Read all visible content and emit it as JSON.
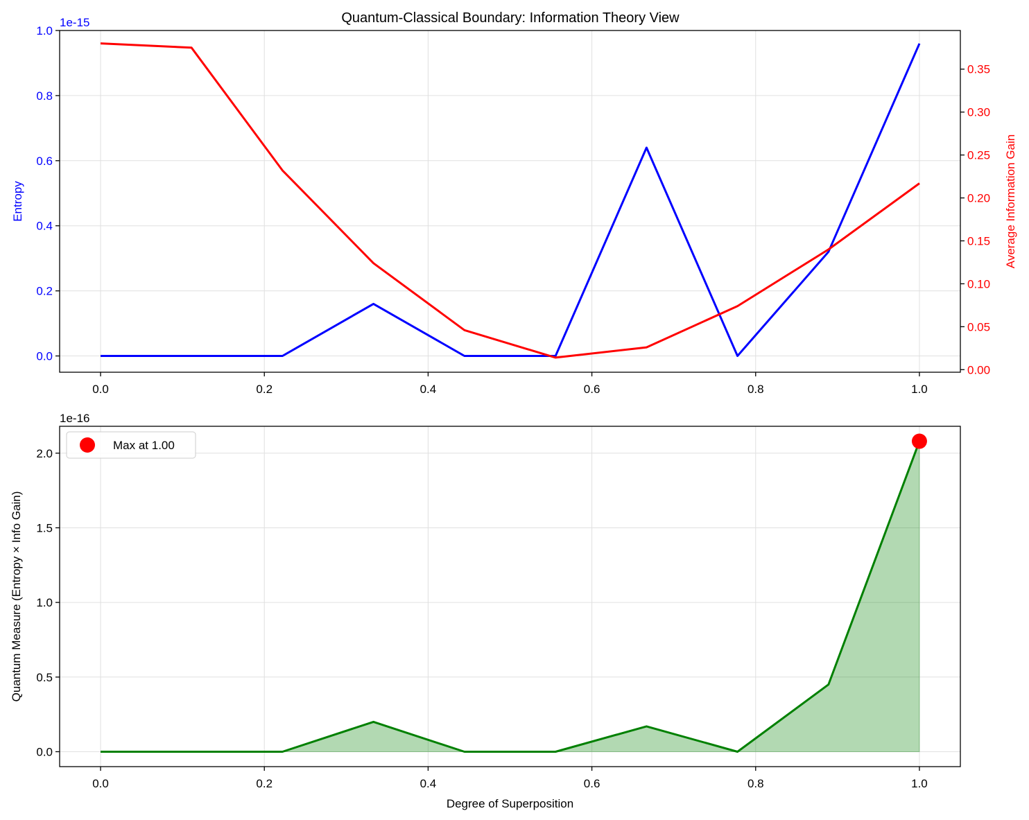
{
  "figure": {
    "title": "Quantum-Classical Boundary: Information Theory View"
  },
  "chart_data": [
    {
      "type": "line",
      "title": "Quantum-Classical Boundary: Information Theory View",
      "xlabel": "",
      "x": [
        0.0,
        0.1111,
        0.2222,
        0.3333,
        0.4444,
        0.5556,
        0.6667,
        0.7778,
        0.8889,
        1.0
      ],
      "xlim": [
        -0.05,
        1.05
      ],
      "xticks": [
        "0.0",
        "0.2",
        "0.4",
        "0.6",
        "0.8",
        "1.0"
      ],
      "grid": true,
      "left_axis": {
        "label": "Entropy",
        "color": "#0000ff",
        "offset_text": "1e-15",
        "ylim": [
          -0.05,
          1.0
        ],
        "ticks": [
          "0.0",
          "0.2",
          "0.4",
          "0.6",
          "0.8",
          "1.0"
        ]
      },
      "right_axis": {
        "label": "Average Information Gain",
        "color": "#ff0000",
        "ylim": [
          -0.003,
          0.395
        ],
        "ticks": [
          "0.00",
          "0.05",
          "0.10",
          "0.15",
          "0.20",
          "0.25",
          "0.30",
          "0.35"
        ]
      },
      "series": [
        {
          "axis": "left",
          "color": "#0000ff",
          "values": [
            0.0,
            0.0,
            0.0,
            0.16,
            0.0,
            0.0,
            0.64,
            0.0,
            0.32,
            0.96
          ]
        },
        {
          "axis": "right",
          "color": "#ff0000",
          "values": [
            0.38,
            0.375,
            0.232,
            0.124,
            0.046,
            0.014,
            0.026,
            0.074,
            0.14,
            0.217
          ]
        }
      ]
    },
    {
      "type": "area",
      "xlabel": "Degree of Superposition",
      "ylabel": "Quantum Measure (Entropy × Info Gain)",
      "offset_text": "1e-16",
      "x": [
        0.0,
        0.1111,
        0.2222,
        0.3333,
        0.4444,
        0.5556,
        0.6667,
        0.7778,
        0.8889,
        1.0
      ],
      "values": [
        0.0,
        0.0,
        0.0,
        0.2,
        0.0,
        0.0,
        0.17,
        0.0,
        0.45,
        2.08
      ],
      "line_color": "#008000",
      "fill_color": "#008000",
      "xlim": [
        -0.05,
        1.05
      ],
      "ylim": [
        -0.1,
        2.18
      ],
      "xticks": [
        "0.0",
        "0.2",
        "0.4",
        "0.6",
        "0.8",
        "1.0"
      ],
      "yticks": [
        "0.0",
        "0.5",
        "1.0",
        "1.5",
        "2.0"
      ],
      "grid": true,
      "max_marker": {
        "x": 1.0,
        "y": 2.08,
        "color": "#ff0000"
      },
      "legend": {
        "placement": "top-left",
        "entries": [
          "Max at 1.00"
        ]
      }
    }
  ]
}
